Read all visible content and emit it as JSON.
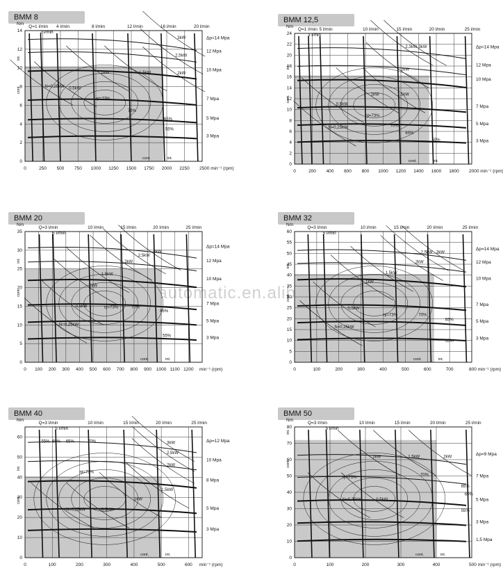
{
  "watermark": "gogoautomatic.en.alibaba.com",
  "colors": {
    "shaded_area": "#c9c9c9",
    "line": "#111111",
    "title_bg": "#c8c8c8"
  },
  "chart_data": [
    {
      "type": "line",
      "title": "BMM 8",
      "ylabel": "Nm",
      "xlabel": "min⁻¹ (rpm)",
      "xlim": [
        0,
        2500
      ],
      "ylim": [
        0,
        14
      ],
      "xticks": [
        0,
        250,
        500,
        750,
        1000,
        1250,
        1500,
        1750,
        2000,
        2250
      ],
      "xtick_labels": [
        "0",
        "250",
        "500",
        "750",
        "1000",
        "1250",
        "1500",
        "1750",
        "2000",
        "2250"
      ],
      "x_last_tick_label": "2500",
      "yticks": [
        0,
        2,
        4,
        6,
        8,
        10,
        12,
        14
      ],
      "flow_lines": [
        {
          "label": "Q=1 l/min",
          "x": 90
        },
        {
          "label": "2 l/min",
          "x": 250
        },
        {
          "label": "4 l/min",
          "x": 480
        },
        {
          "label": "8 l/min",
          "x": 980
        },
        {
          "label": "12 l/min",
          "x": 1480
        },
        {
          "label": "16 l/min",
          "x": 1950
        },
        {
          "label": "20 l/min",
          "x": 2420
        }
      ],
      "pressure_lines": [
        {
          "label": "Δp=14 Mpa",
          "y": 13.2
        },
        {
          "label": "12 Mpa",
          "y": 11.8
        },
        {
          "label": "10 Mpa",
          "y": 9.8
        },
        {
          "label": "7 Mpa",
          "y": 6.7
        },
        {
          "label": "5 Mpa",
          "y": 4.6
        },
        {
          "label": "3 Mpa",
          "y": 2.7
        }
      ],
      "power_labels": [
        {
          "text": "3kW",
          "x": 2150,
          "y": 13.1
        },
        {
          "text": "2,5kW",
          "x": 2120,
          "y": 11.2
        },
        {
          "text": "2kW",
          "x": 2150,
          "y": 9.3
        },
        {
          "text": "1kW",
          "x": 1070,
          "y": 9.4
        },
        {
          "text": "1,5kW",
          "x": 1610,
          "y": 9.4
        },
        {
          "text": "0,5kW",
          "x": 620,
          "y": 7.7
        },
        {
          "text": "N=0,25kW",
          "x": 280,
          "y": 7.9
        }
      ],
      "efficiency_labels": [
        {
          "text": "ηt=73%",
          "x": 1000,
          "y": 6.6
        },
        {
          "text": "70%",
          "x": 1450,
          "y": 5.3
        },
        {
          "text": "65%",
          "x": 1960,
          "y": 4.4
        },
        {
          "text": "55%",
          "x": 1980,
          "y": 3.3
        }
      ],
      "shaded": {
        "x_max": 1950,
        "y_max": 10.2
      },
      "cont_label": "cont.",
      "int_label": "int.",
      "y_cont_label": "cont.",
      "y_int_label": "int."
    },
    {
      "type": "line",
      "title": "BMM 12,5",
      "ylabel": "Nm",
      "xlabel": "min⁻¹ (rpm)",
      "xlim": [
        0,
        2000
      ],
      "ylim": [
        0,
        24
      ],
      "xticks": [
        0,
        200,
        400,
        600,
        800,
        1000,
        1200,
        1400,
        1600,
        1800
      ],
      "xtick_labels": [
        "0",
        "200",
        "400",
        "600",
        "800",
        "1000",
        "1200",
        "1400",
        "1600",
        "1800"
      ],
      "x_last_tick_label": "2000",
      "yticks": [
        0,
        2,
        4,
        6,
        8,
        10,
        12,
        14,
        16,
        18,
        20,
        22,
        24
      ],
      "flow_lines": [
        {
          "label": "Q=1 l/min",
          "x": 70
        },
        {
          "label": "3 l/min",
          "x": 180
        },
        {
          "label": "5 l/min",
          "x": 310
        },
        {
          "label": "10 l/min",
          "x": 800
        },
        {
          "label": "15 l/min",
          "x": 1180
        },
        {
          "label": "20 l/min",
          "x": 1550
        },
        {
          "label": "25 l/min",
          "x": 1950
        }
      ],
      "pressure_lines": [
        {
          "label": "Δp=14 Mpa",
          "y": 21.5
        },
        {
          "label": "12 Mpa",
          "y": 18.2
        },
        {
          "label": "10 Mpa",
          "y": 15.6
        },
        {
          "label": "7 Mpa",
          "y": 10.6
        },
        {
          "label": "5 Mpa",
          "y": 7.4
        },
        {
          "label": "3 Mpa",
          "y": 4.3
        }
      ],
      "power_labels": [
        {
          "text": "3kW",
          "x": 1400,
          "y": 21.3
        },
        {
          "text": "2,3kW",
          "x": 1250,
          "y": 21.3
        },
        {
          "text": "2kW",
          "x": 1200,
          "y": 17.2
        },
        {
          "text": "1kW",
          "x": 860,
          "y": 12.6
        },
        {
          "text": "1,5kW",
          "x": 1160,
          "y": 12.6
        },
        {
          "text": "0,5kW",
          "x": 470,
          "y": 10.8
        },
        {
          "text": "N=0,25kW",
          "x": 380,
          "y": 6.5
        }
      ],
      "efficiency_labels": [
        {
          "text": "ηt=73%",
          "x": 800,
          "y": 8.7
        },
        {
          "text": "70%",
          "x": 1080,
          "y": 6.8
        },
        {
          "text": "65%",
          "x": 1250,
          "y": 5.5
        },
        {
          "text": "55%",
          "x": 1550,
          "y": 4.2
        }
      ],
      "shaded": {
        "x_max": 1520,
        "y_max": 16.3
      },
      "cont_label": "cont.",
      "int_label": "int.",
      "y_cont_label": "cont.",
      "y_int_label": "int."
    },
    {
      "type": "line",
      "title": "BMM 20",
      "ylabel": "Nm",
      "xlabel": "min⁻¹ (rpm)",
      "xlim": [
        0,
        1300
      ],
      "ylim": [
        0,
        35
      ],
      "xticks": [
        0,
        100,
        200,
        300,
        400,
        500,
        600,
        700,
        800,
        900,
        1000,
        1100,
        1200
      ],
      "xtick_labels": [
        "0",
        "100",
        "200",
        "300",
        "400",
        "500",
        "600",
        "700",
        "800",
        "900",
        "1000",
        "1100",
        "1200"
      ],
      "x_last_tick_label": "",
      "yticks": [
        0,
        5,
        10,
        15,
        20,
        25,
        30,
        35
      ],
      "flow_lines": [
        {
          "label": "Q=3 l/min",
          "x": 120
        },
        {
          "label": "5 l/min",
          "x": 220
        },
        {
          "label": "10 l/min",
          "x": 480
        },
        {
          "label": "15 l/min",
          "x": 720
        },
        {
          "label": "20 l/min",
          "x": 960
        },
        {
          "label": "25 l/min",
          "x": 1200
        }
      ],
      "pressure_lines": [
        {
          "label": "Δp=14 Mpa",
          "y": 31
        },
        {
          "label": "12 Mpa",
          "y": 27.2
        },
        {
          "label": "10 Mpa",
          "y": 22.3
        },
        {
          "label": "7 Mpa",
          "y": 15.7
        },
        {
          "label": "5 Mpa",
          "y": 11.1
        },
        {
          "label": "3 Mpa",
          "y": 6.6
        }
      ],
      "power_labels": [
        {
          "text": "3kW",
          "x": 940,
          "y": 29.3
        },
        {
          "text": "2,5kW",
          "x": 830,
          "y": 28.3
        },
        {
          "text": "2kW",
          "x": 730,
          "y": 26.6
        },
        {
          "text": "1,5kW",
          "x": 560,
          "y": 23.3
        },
        {
          "text": "1kW",
          "x": 470,
          "y": 20.2
        },
        {
          "text": "0,5kW",
          "x": 370,
          "y": 14.7
        },
        {
          "text": "N=0,25kW",
          "x": 250,
          "y": 9.8
        }
      ],
      "efficiency_labels": [
        {
          "text": "ηt=73%",
          "x": 580,
          "y": 14.4
        },
        {
          "text": "70%",
          "x": 780,
          "y": 14.4
        },
        {
          "text": "65%",
          "x": 990,
          "y": 13.4
        },
        {
          "text": "55%",
          "x": 1010,
          "y": 6.8
        }
      ],
      "shaded": {
        "x_max": 1000,
        "y_max": 25
      },
      "cont_label": "cont.",
      "int_label": "int.",
      "y_cont_label": "cont.",
      "y_int_label": "int."
    },
    {
      "type": "line",
      "title": "BMM 32",
      "ylabel": "Nm",
      "xlabel": "min⁻¹ (rpm)",
      "xlim": [
        0,
        800
      ],
      "ylim": [
        0,
        60
      ],
      "xticks": [
        0,
        100,
        200,
        300,
        400,
        500,
        600,
        700
      ],
      "xtick_labels": [
        "0",
        "100",
        "200",
        "300",
        "400",
        "500",
        "600",
        "700"
      ],
      "x_last_tick_label": "800",
      "yticks": [
        0,
        5,
        10,
        15,
        20,
        25,
        30,
        35,
        40,
        45,
        50,
        55,
        60
      ],
      "flow_lines": [
        {
          "label": "Q=3 l/min",
          "x": 70
        },
        {
          "label": "5 l/min",
          "x": 140
        },
        {
          "label": "10 l/min",
          "x": 310
        },
        {
          "label": "15 l/min",
          "x": 460
        },
        {
          "label": "20 l/min",
          "x": 610
        },
        {
          "label": "25 l/min",
          "x": 770
        }
      ],
      "pressure_lines": [
        {
          "label": "Δp=14 Mpa",
          "y": 52
        },
        {
          "label": "12 Mpa",
          "y": 46
        },
        {
          "label": "10 Mpa",
          "y": 38.5
        },
        {
          "label": "7 Mpa",
          "y": 26.5
        },
        {
          "label": "5 Mpa",
          "y": 18.8
        },
        {
          "label": "3 Mpa",
          "y": 11
        }
      ],
      "power_labels": [
        {
          "text": "3kW",
          "x": 640,
          "y": 50
        },
        {
          "text": "2,5kW",
          "x": 570,
          "y": 50
        },
        {
          "text": "2kW",
          "x": 545,
          "y": 45.5
        },
        {
          "text": "1,5kW",
          "x": 410,
          "y": 40.5
        },
        {
          "text": "1kW",
          "x": 320,
          "y": 36.5
        },
        {
          "text": "0,5kW",
          "x": 240,
          "y": 24.2
        },
        {
          "text": "N=0,25kW",
          "x": 180,
          "y": 15.6
        }
      ],
      "efficiency_labels": [
        {
          "text": "ηt=73%",
          "x": 400,
          "y": 21.2
        },
        {
          "text": "70%",
          "x": 560,
          "y": 21.2
        },
        {
          "text": "65%",
          "x": 680,
          "y": 19
        },
        {
          "text": "55%",
          "x": 680,
          "y": 9.2
        }
      ],
      "shaded": {
        "x_max": 630,
        "y_max": 40.5
      },
      "cont_label": "cont.",
      "int_label": "int.",
      "y_cont_label": "cont.",
      "y_int_label": "int."
    },
    {
      "type": "line",
      "title": "BMM 40",
      "ylabel": "Nm",
      "xlabel": "min⁻¹ (rpm)",
      "xlim": [
        0,
        650
      ],
      "ylim": [
        0,
        65
      ],
      "xticks": [
        0,
        100,
        200,
        300,
        400,
        500,
        600
      ],
      "xtick_labels": [
        "0",
        "100",
        "200",
        "300",
        "400",
        "500",
        "600"
      ],
      "x_last_tick_label": "",
      "yticks": [
        0,
        10,
        20,
        30,
        40,
        50,
        60
      ],
      "flow_lines": [
        {
          "label": "Q=3 l/min",
          "x": 60
        },
        {
          "label": "5 l/min",
          "x": 120
        },
        {
          "label": "10 l/min",
          "x": 240
        },
        {
          "label": "15 l/min",
          "x": 370
        },
        {
          "label": "20 l/min",
          "x": 490
        },
        {
          "label": "25 l/min",
          "x": 620
        }
      ],
      "pressure_lines": [
        {
          "label": "Δp=12 Mpa",
          "y": 58
        },
        {
          "label": "10 Mpa",
          "y": 48.5
        },
        {
          "label": "8 Mpa",
          "y": 38.5
        },
        {
          "label": "5 Mpa",
          "y": 24.5
        },
        {
          "label": "3 Mpa",
          "y": 14.2
        }
      ],
      "power_labels": [
        {
          "text": "3kW",
          "x": 520,
          "y": 56.5
        },
        {
          "text": "2,5kW",
          "x": 520,
          "y": 51.5
        },
        {
          "text": "2kW",
          "x": 520,
          "y": 45.5
        },
        {
          "text": "1,5kW",
          "x": 500,
          "y": 33.2
        },
        {
          "text": "1kW",
          "x": 400,
          "y": 28.6
        },
        {
          "text": "0,5kW",
          "x": 280,
          "y": 23.4
        },
        {
          "text": "N=0,25kW",
          "x": 150,
          "y": 23.4
        }
      ],
      "efficiency_labels": [
        {
          "text": "55%",
          "x": 60,
          "y": 57.3
        },
        {
          "text": "60%",
          "x": 100,
          "y": 57.3
        },
        {
          "text": "65%",
          "x": 150,
          "y": 57.3
        },
        {
          "text": "70%",
          "x": 230,
          "y": 57.3
        },
        {
          "text": "ηt=75%",
          "x": 200,
          "y": 42
        }
      ],
      "shaded": {
        "x_max": 500,
        "y_max": 40.5
      },
      "cont_label": "cont.",
      "int_label": "int.",
      "y_cont_label": "cont.",
      "y_int_label": "int."
    },
    {
      "type": "line",
      "title": "BMM 50",
      "ylabel": "Nm",
      "xlabel": "min⁻¹ (rpm)",
      "xlim": [
        0,
        500
      ],
      "ylim": [
        0,
        80
      ],
      "xticks": [
        0,
        100,
        200,
        300,
        400
      ],
      "xtick_labels": [
        "0",
        "100",
        "200",
        "300",
        "400"
      ],
      "x_last_tick_label": "500",
      "yticks": [
        0,
        10,
        20,
        30,
        40,
        50,
        60,
        70,
        80
      ],
      "flow_lines": [
        {
          "label": "Q=3 l/min",
          "x": 45
        },
        {
          "label": "5 l/min",
          "x": 95
        },
        {
          "label": "10 l/min",
          "x": 190
        },
        {
          "label": "15 l/min",
          "x": 290
        },
        {
          "label": "20 l/min",
          "x": 390
        },
        {
          "label": "25 l/min",
          "x": 490
        }
      ],
      "pressure_lines": [
        {
          "label": "Δp=9 Mpa",
          "y": 63.5
        },
        {
          "label": "7 Mpa",
          "y": 50
        },
        {
          "label": "5 Mpa",
          "y": 35.5
        },
        {
          "label": "3 Mpa",
          "y": 22
        },
        {
          "label": "1,5 Mpa",
          "y": 11
        }
      ],
      "power_labels": [
        {
          "text": "1kW",
          "x": 220,
          "y": 61
        },
        {
          "text": "1,5kW",
          "x": 320,
          "y": 61
        },
        {
          "text": "2kW",
          "x": 420,
          "y": 61
        },
        {
          "text": "0,5kW",
          "x": 230,
          "y": 35
        },
        {
          "text": "N=0,25kW",
          "x": 135,
          "y": 35
        }
      ],
      "efficiency_labels": [
        {
          "text": "ηt=75%",
          "x": 135,
          "y": 48.5
        },
        {
          "text": "70%",
          "x": 355,
          "y": 50
        },
        {
          "text": "65%",
          "x": 470,
          "y": 43
        },
        {
          "text": "60%",
          "x": 480,
          "y": 38
        },
        {
          "text": "55%",
          "x": 470,
          "y": 28
        }
      ],
      "shaded": {
        "x_max": 400,
        "y_max": 72
      },
      "cont_label": "cont.",
      "int_label": "int.",
      "y_cont_label": "cont.",
      "y_int_label": "int."
    }
  ]
}
